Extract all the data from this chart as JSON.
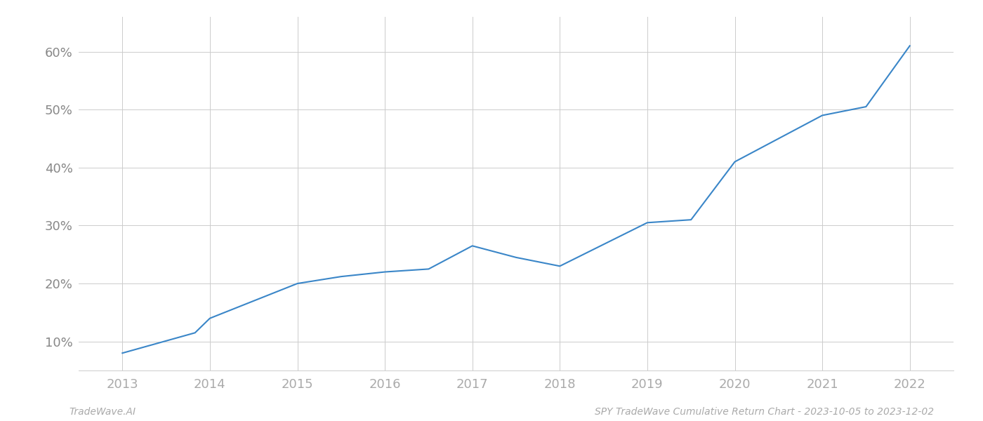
{
  "x_years": [
    2013,
    2013.83,
    2014,
    2015,
    2015.5,
    2016,
    2016.5,
    2017,
    2017.5,
    2018,
    2019,
    2019.5,
    2020,
    2021,
    2021.5,
    2022
  ],
  "y_values": [
    8.0,
    11.5,
    14.0,
    20.0,
    21.2,
    22.0,
    22.5,
    26.5,
    24.5,
    23.0,
    30.5,
    31.0,
    41.0,
    49.0,
    50.5,
    61.0
  ],
  "line_color": "#3a86c8",
  "background_color": "#ffffff",
  "grid_color": "#cccccc",
  "xlabel_color": "#aaaaaa",
  "ylabel_color": "#888888",
  "x_ticks": [
    2013,
    2014,
    2015,
    2016,
    2017,
    2018,
    2019,
    2020,
    2021,
    2022
  ],
  "y_ticks": [
    10,
    20,
    30,
    40,
    50,
    60
  ],
  "ylim": [
    5,
    66
  ],
  "xlim": [
    2012.5,
    2022.5
  ],
  "footer_left": "TradeWave.AI",
  "footer_right": "SPY TradeWave Cumulative Return Chart - 2023-10-05 to 2023-12-02",
  "footer_color": "#aaaaaa",
  "line_width": 1.5,
  "tick_fontsize": 13,
  "footer_fontsize": 10
}
